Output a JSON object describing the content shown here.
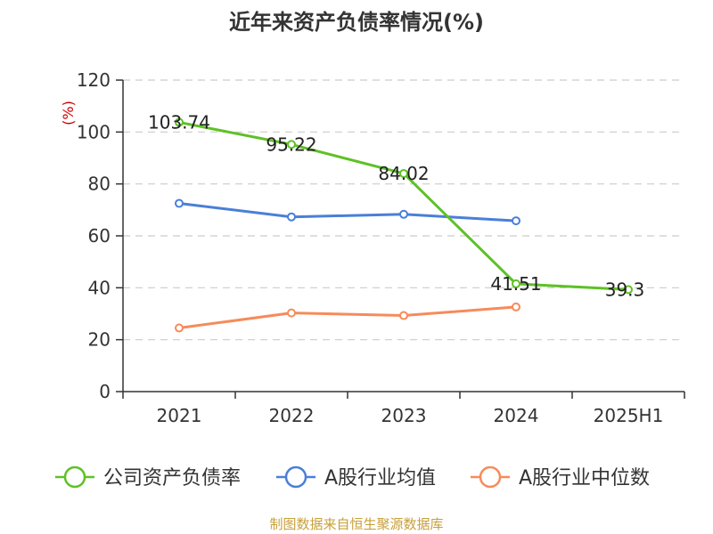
{
  "chart_data": {
    "type": "line",
    "title": "近年来资产负债率情况(%)",
    "ylabel": "(%)",
    "xlabel": "",
    "categories": [
      "2021",
      "2022",
      "2023",
      "2024",
      "2025H1"
    ],
    "ylim": [
      0,
      120
    ],
    "yticks": [
      0,
      20,
      40,
      60,
      80,
      100,
      120
    ],
    "grid": true,
    "legend_position": "bottom",
    "series": [
      {
        "name": "公司资产负债率",
        "color": "#5ec126",
        "values": [
          103.74,
          95.22,
          84.02,
          41.51,
          39.3
        ],
        "labels": [
          "103.74",
          "95.22",
          "84.02",
          "41.51",
          "39.3"
        ]
      },
      {
        "name": "A股行业均值",
        "color": "#4a7fd8",
        "values": [
          72.5,
          67.3,
          68.3,
          65.8,
          null
        ]
      },
      {
        "name": "A股行业中位数",
        "color": "#f68b5a",
        "values": [
          24.5,
          30.3,
          29.3,
          32.6,
          null
        ]
      }
    ],
    "source": "制图数据来自恒生聚源数据库"
  }
}
